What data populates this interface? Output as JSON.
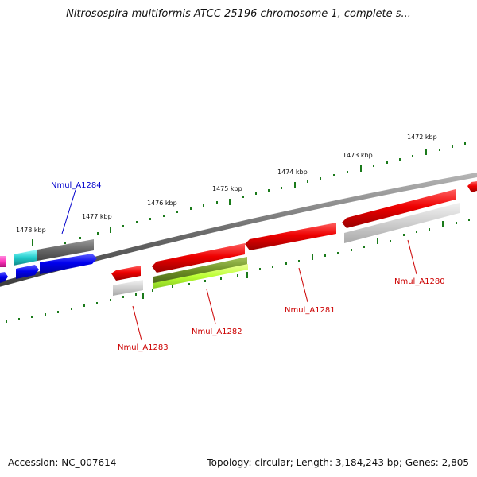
{
  "title": "Nitrosospira multiformis ATCC 25196 chromosome 1, complete s...",
  "footer": {
    "accession": "Accession: NC_007614",
    "summary": "Topology: circular; Length: 3,184,243 bp; Genes: 2,805"
  },
  "scale_labels": [
    "1478 kbp",
    "1477 kbp",
    "1476 kbp",
    "1475 kbp",
    "1474 kbp",
    "1473 kbp",
    "1472 kbp"
  ],
  "gene_labels": {
    "forward": [
      "Nmul_A1284"
    ],
    "reverse": [
      "Nmul_A1283",
      "Nmul_A1282",
      "Nmul_A1281",
      "Nmul_A1280"
    ]
  },
  "colors": {
    "forward_label": "#0000cc",
    "reverse_label": "#cc0000",
    "tick": "#1a7a1a",
    "backbone": "#7a7a7a"
  }
}
